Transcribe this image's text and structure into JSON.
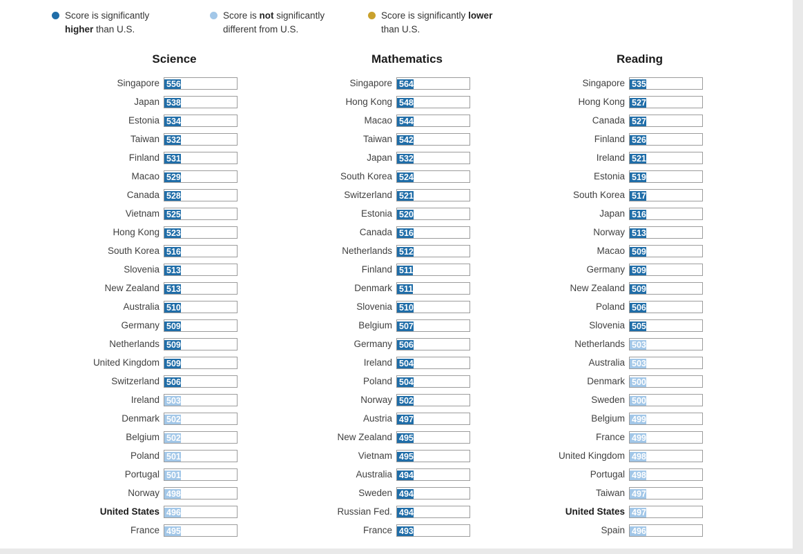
{
  "colors": {
    "higher": "#1f6da8",
    "not": "#a2c7e8",
    "lower": "#c9a12c"
  },
  "bold_country": "United States",
  "legend": {
    "items": [
      {
        "color_key": "higher",
        "text_pre": "Score is significantly",
        "text_bold": "higher",
        "text_post": "than U.S."
      },
      {
        "color_key": "not",
        "text_pre": "Score is",
        "text_bold": "not",
        "text_post": "significantly different from U.S."
      },
      {
        "color_key": "lower",
        "text_pre": "Score is significantly",
        "text_bold": "lower",
        "text_post": "than U.S."
      }
    ]
  },
  "chart_data": [
    {
      "type": "bar",
      "title": "Science",
      "xlim": [
        0,
        960
      ],
      "categories": [
        "Singapore",
        "Japan",
        "Estonia",
        "Taiwan",
        "Finland",
        "Macao",
        "Canada",
        "Vietnam",
        "Hong Kong",
        "South Korea",
        "Slovenia",
        "New Zealand",
        "Australia",
        "Germany",
        "Netherlands",
        "United Kingdom",
        "Switzerland",
        "Ireland",
        "Denmark",
        "Belgium",
        "Poland",
        "Portugal",
        "Norway",
        "United States",
        "France"
      ],
      "values": [
        556,
        538,
        534,
        532,
        531,
        529,
        528,
        525,
        523,
        516,
        513,
        513,
        510,
        509,
        509,
        509,
        506,
        503,
        502,
        502,
        501,
        501,
        498,
        496,
        495
      ],
      "significance": [
        "higher",
        "higher",
        "higher",
        "higher",
        "higher",
        "higher",
        "higher",
        "higher",
        "higher",
        "higher",
        "higher",
        "higher",
        "higher",
        "higher",
        "higher",
        "higher",
        "higher",
        "not",
        "not",
        "not",
        "not",
        "not",
        "not",
        "not",
        "not"
      ]
    },
    {
      "type": "bar",
      "title": "Mathematics",
      "xlim": [
        0,
        960
      ],
      "categories": [
        "Singapore",
        "Hong Kong",
        "Macao",
        "Taiwan",
        "Japan",
        "South Korea",
        "Switzerland",
        "Estonia",
        "Canada",
        "Netherlands",
        "Finland",
        "Denmark",
        "Slovenia",
        "Belgium",
        "Germany",
        "Ireland",
        "Poland",
        "Norway",
        "Austria",
        "New Zealand",
        "Vietnam",
        "Australia",
        "Sweden",
        "Russian Fed.",
        "France"
      ],
      "values": [
        564,
        548,
        544,
        542,
        532,
        524,
        521,
        520,
        516,
        512,
        511,
        511,
        510,
        507,
        506,
        504,
        504,
        502,
        497,
        495,
        495,
        494,
        494,
        494,
        493
      ],
      "significance": [
        "higher",
        "higher",
        "higher",
        "higher",
        "higher",
        "higher",
        "higher",
        "higher",
        "higher",
        "higher",
        "higher",
        "higher",
        "higher",
        "higher",
        "higher",
        "higher",
        "higher",
        "higher",
        "higher",
        "higher",
        "higher",
        "higher",
        "higher",
        "higher",
        "higher"
      ]
    },
    {
      "type": "bar",
      "title": "Reading",
      "xlim": [
        0,
        960
      ],
      "categories": [
        "Singapore",
        "Hong Kong",
        "Canada",
        "Finland",
        "Ireland",
        "Estonia",
        "South Korea",
        "Japan",
        "Norway",
        "Macao",
        "Germany",
        "New Zealand",
        "Poland",
        "Slovenia",
        "Netherlands",
        "Australia",
        "Denmark",
        "Sweden",
        "Belgium",
        "France",
        "United Kingdom",
        "Portugal",
        "Taiwan",
        "United States",
        "Spain"
      ],
      "values": [
        535,
        527,
        527,
        526,
        521,
        519,
        517,
        516,
        513,
        509,
        509,
        509,
        506,
        505,
        503,
        503,
        500,
        500,
        499,
        499,
        498,
        498,
        497,
        497,
        496
      ],
      "significance": [
        "higher",
        "higher",
        "higher",
        "higher",
        "higher",
        "higher",
        "higher",
        "higher",
        "higher",
        "higher",
        "higher",
        "higher",
        "higher",
        "higher",
        "not",
        "not",
        "not",
        "not",
        "not",
        "not",
        "not",
        "not",
        "not",
        "not",
        "not"
      ]
    }
  ]
}
